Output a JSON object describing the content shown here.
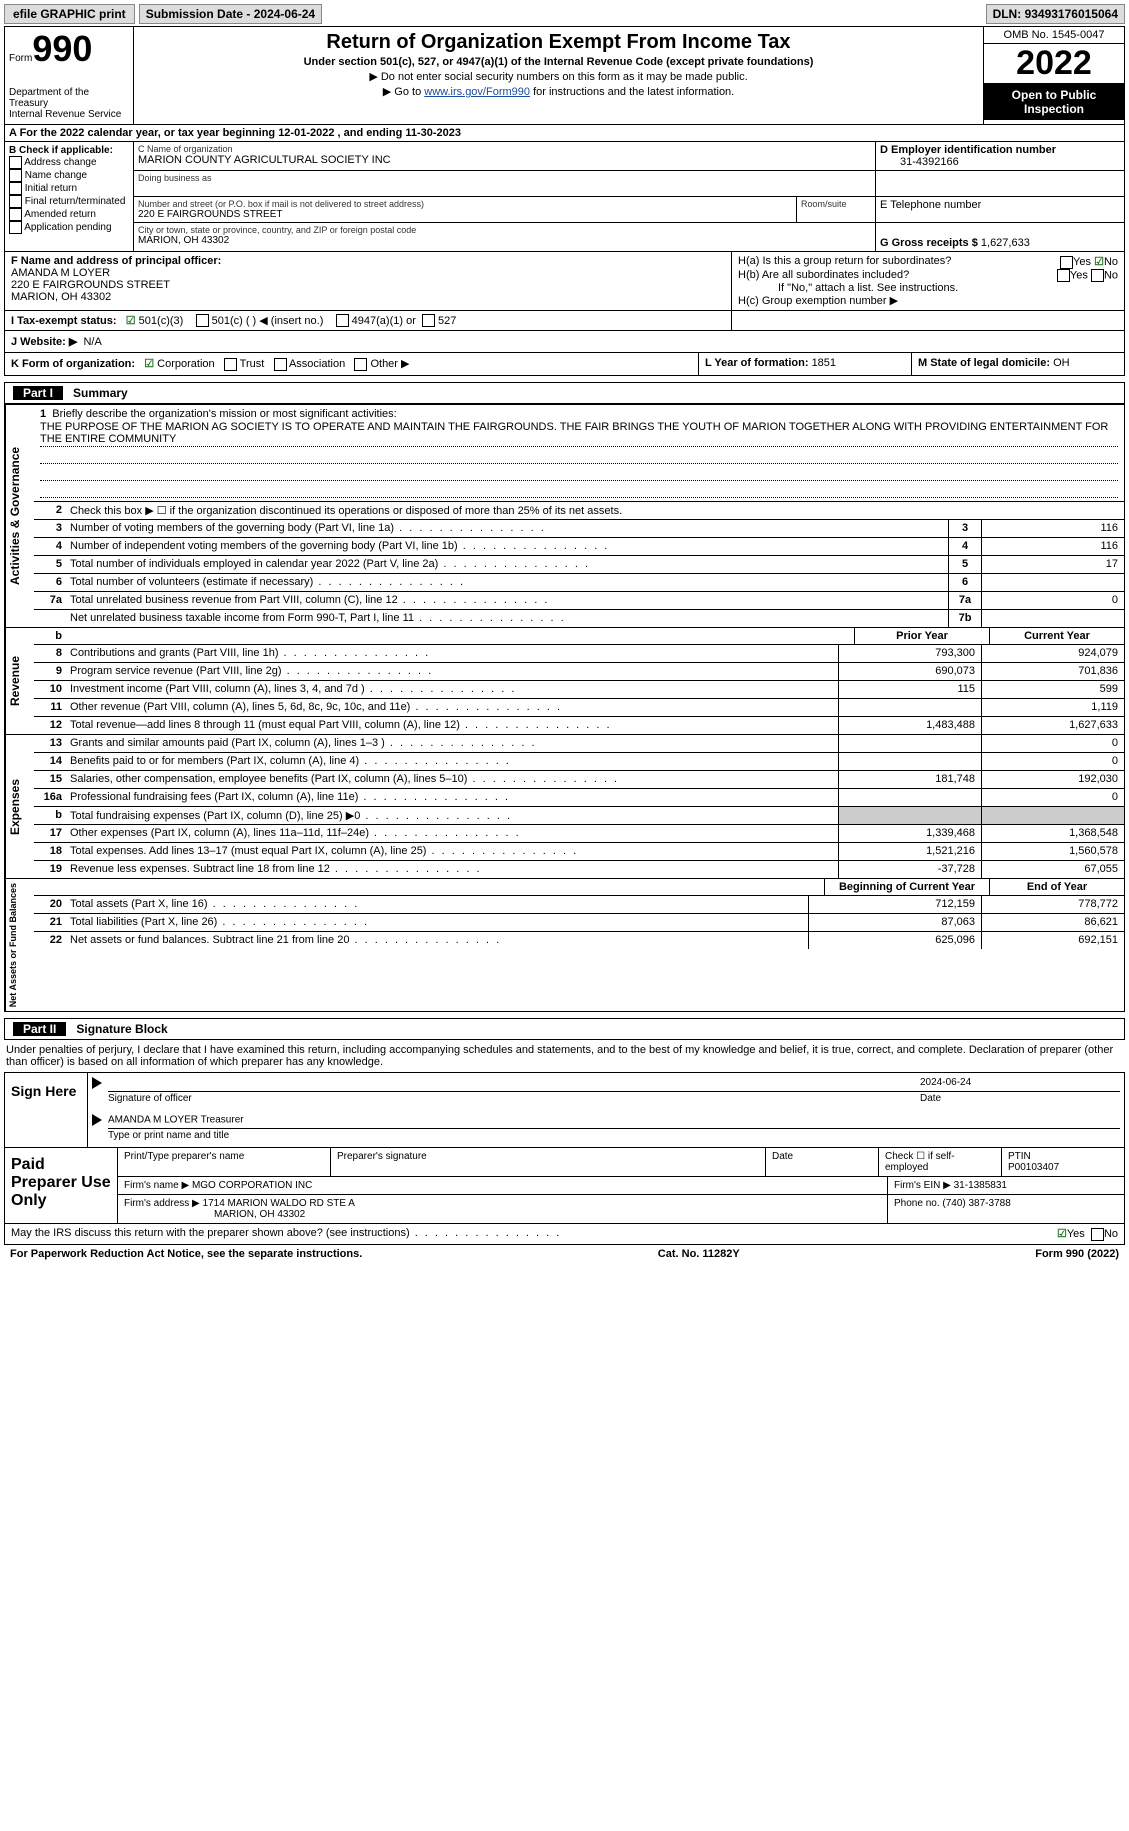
{
  "topbar": {
    "efile": "efile GRAPHIC print",
    "subdate_label": "Submission Date - ",
    "subdate": "2024-06-24",
    "dln_label": "DLN: ",
    "dln": "93493176015064"
  },
  "header": {
    "form_word": "Form",
    "form_num": "990",
    "dept": "Department of the Treasury\nInternal Revenue Service",
    "title": "Return of Organization Exempt From Income Tax",
    "sub1": "Under section 501(c), 527, or 4947(a)(1) of the Internal Revenue Code (except private foundations)",
    "sub2": "▶ Do not enter social security numbers on this form as it may be made public.",
    "sub3_pre": "▶ Go to ",
    "sub3_link": "www.irs.gov/Form990",
    "sub3_post": " for instructions and the latest information.",
    "omb": "OMB No. 1545-0047",
    "year": "2022",
    "open": "Open to Public Inspection"
  },
  "row_a": {
    "text": "A For the 2022 calendar year, or tax year beginning 12-01-2022    , and ending 11-30-2023"
  },
  "col_b": {
    "label": "B Check if applicable:",
    "opts": [
      "Address change",
      "Name change",
      "Initial return",
      "Final return/terminated",
      "Amended return",
      "Application pending"
    ]
  },
  "section_c": {
    "name_label": "C Name of organization",
    "name": "MARION COUNTY AGRICULTURAL SOCIETY INC",
    "dba_label": "Doing business as",
    "addr_label": "Number and street (or P.O. box if mail is not delivered to street address)",
    "room_label": "Room/suite",
    "addr": "220 E FAIRGROUNDS STREET",
    "city_label": "City or town, state or province, country, and ZIP or foreign postal code",
    "city": "MARION, OH  43302"
  },
  "section_d": {
    "label": "D Employer identification number",
    "value": "31-4392166"
  },
  "section_e": {
    "label": "E Telephone number",
    "value": ""
  },
  "section_g": {
    "label": "G Gross receipts $ ",
    "value": "1,627,633"
  },
  "section_f": {
    "label": "F Name and address of principal officer:",
    "name": "AMANDA M LOYER",
    "addr1": "220 E FAIRGROUNDS STREET",
    "addr2": "MARION, OH  43302"
  },
  "section_h": {
    "ha": "H(a)  Is this a group return for subordinates?",
    "hb": "H(b)  Are all subordinates included?",
    "hb_note": "If \"No,\" attach a list. See instructions.",
    "hc": "H(c)  Group exemption number ▶",
    "yes": "Yes",
    "no": "No"
  },
  "section_i": {
    "label": "I      Tax-exempt status:",
    "opt1": "501(c)(3)",
    "opt2": "501(c) (  ) ◀ (insert no.)",
    "opt3": "4947(a)(1) or",
    "opt4": "527"
  },
  "section_j": {
    "label": "J     Website: ▶",
    "value": "N/A"
  },
  "section_k": {
    "label": "K Form of organization:",
    "opts": [
      "Corporation",
      "Trust",
      "Association",
      "Other ▶"
    ]
  },
  "section_l": {
    "label": "L Year of formation: ",
    "value": "1851"
  },
  "section_m": {
    "label": "M State of legal domicile: ",
    "value": "OH"
  },
  "part1": {
    "part": "Part I",
    "title": "Summary",
    "line1_label": "Briefly describe the organization's mission or most significant activities:",
    "mission": "THE PURPOSE OF THE MARION AG SOCIETY IS TO OPERATE AND MAINTAIN THE FAIRGROUNDS. THE FAIR BRINGS THE YOUTH OF MARION TOGETHER ALONG WITH PROVIDING ENTERTAINMENT FOR THE ENTIRE COMMUNITY",
    "line2": "Check this box ▶ ☐  if the organization discontinued its operations or disposed of more than 25% of its net assets.",
    "labels": {
      "3": "Number of voting members of the governing body (Part VI, line 1a)",
      "4": "Number of independent voting members of the governing body (Part VI, line 1b)",
      "5": "Total number of individuals employed in calendar year 2022 (Part V, line 2a)",
      "6": "Total number of volunteers (estimate if necessary)",
      "7a": "Total unrelated business revenue from Part VIII, column (C), line 12",
      "7b": "Net unrelated business taxable income from Form 990-T, Part I, line 11"
    },
    "vals": {
      "3": "116",
      "4": "116",
      "5": "17",
      "6": "",
      "7a": "0",
      "7b": ""
    },
    "side1": "Activities & Governance"
  },
  "revenue": {
    "side": "Revenue",
    "prior_hdr": "Prior Year",
    "curr_hdr": "Current Year",
    "lines": [
      {
        "n": "8",
        "d": "Contributions and grants (Part VIII, line 1h)",
        "p": "793,300",
        "c": "924,079"
      },
      {
        "n": "9",
        "d": "Program service revenue (Part VIII, line 2g)",
        "p": "690,073",
        "c": "701,836"
      },
      {
        "n": "10",
        "d": "Investment income (Part VIII, column (A), lines 3, 4, and 7d )",
        "p": "115",
        "c": "599"
      },
      {
        "n": "11",
        "d": "Other revenue (Part VIII, column (A), lines 5, 6d, 8c, 9c, 10c, and 11e)",
        "p": "",
        "c": "1,119"
      },
      {
        "n": "12",
        "d": "Total revenue—add lines 8 through 11 (must equal Part VIII, column (A), line 12)",
        "p": "1,483,488",
        "c": "1,627,633"
      }
    ]
  },
  "expenses": {
    "side": "Expenses",
    "lines": [
      {
        "n": "13",
        "d": "Grants and similar amounts paid (Part IX, column (A), lines 1–3 )",
        "p": "",
        "c": "0"
      },
      {
        "n": "14",
        "d": "Benefits paid to or for members (Part IX, column (A), line 4)",
        "p": "",
        "c": "0"
      },
      {
        "n": "15",
        "d": "Salaries, other compensation, employee benefits (Part IX, column (A), lines 5–10)",
        "p": "181,748",
        "c": "192,030"
      },
      {
        "n": "16a",
        "d": "Professional fundraising fees (Part IX, column (A), line 11e)",
        "p": "",
        "c": "0"
      },
      {
        "n": "b",
        "d": "Total fundraising expenses (Part IX, column (D), line 25) ▶0",
        "p": "GREY",
        "c": "GREY"
      },
      {
        "n": "17",
        "d": "Other expenses (Part IX, column (A), lines 11a–11d, 11f–24e)",
        "p": "1,339,468",
        "c": "1,368,548"
      },
      {
        "n": "18",
        "d": "Total expenses. Add lines 13–17 (must equal Part IX, column (A), line 25)",
        "p": "1,521,216",
        "c": "1,560,578"
      },
      {
        "n": "19",
        "d": "Revenue less expenses. Subtract line 18 from line 12",
        "p": "-37,728",
        "c": "67,055"
      }
    ]
  },
  "netassets": {
    "side": "Net Assets or Fund Balances",
    "beg_hdr": "Beginning of Current Year",
    "end_hdr": "End of Year",
    "lines": [
      {
        "n": "20",
        "d": "Total assets (Part X, line 16)",
        "p": "712,159",
        "c": "778,772"
      },
      {
        "n": "21",
        "d": "Total liabilities (Part X, line 26)",
        "p": "87,063",
        "c": "86,621"
      },
      {
        "n": "22",
        "d": "Net assets or fund balances. Subtract line 21 from line 20",
        "p": "625,096",
        "c": "692,151"
      }
    ]
  },
  "part2": {
    "part": "Part II",
    "title": "Signature Block",
    "jurat": "Under penalties of perjury, I declare that I have examined this return, including accompanying schedules and statements, and to the best of my knowledge and belief, it is true, correct, and complete. Declaration of preparer (other than officer) is based on all information of which preparer has any knowledge."
  },
  "sign": {
    "here": "Sign Here",
    "sig_label": "Signature of officer",
    "date_label": "Date",
    "date": "2024-06-24",
    "name": "AMANDA M LOYER  Treasurer",
    "name_label": "Type or print name and title"
  },
  "preparer": {
    "title": "Paid Preparer Use Only",
    "print_label": "Print/Type preparer's name",
    "sig_label": "Preparer's signature",
    "date_label": "Date",
    "check_label": "Check ☐ if self-employed",
    "ptin_label": "PTIN",
    "ptin": "P00103407",
    "firm_label": "Firm's name    ▶",
    "firm": "MGO CORPORATION INC",
    "ein_label": "Firm's EIN ▶",
    "ein": "31-1385831",
    "addr_label": "Firm's address ▶",
    "addr1": "1714 MARION WALDO RD STE A",
    "addr2": "MARION, OH  43302",
    "phone_label": "Phone no. ",
    "phone": "(740) 387-3788"
  },
  "footer": {
    "irs_q": "May the IRS discuss this return with the preparer shown above? (see instructions)",
    "yes": "Yes",
    "no": "No",
    "paperwork": "For Paperwork Reduction Act Notice, see the separate instructions.",
    "cat": "Cat. No. 11282Y",
    "form": "Form 990 (2022)"
  }
}
